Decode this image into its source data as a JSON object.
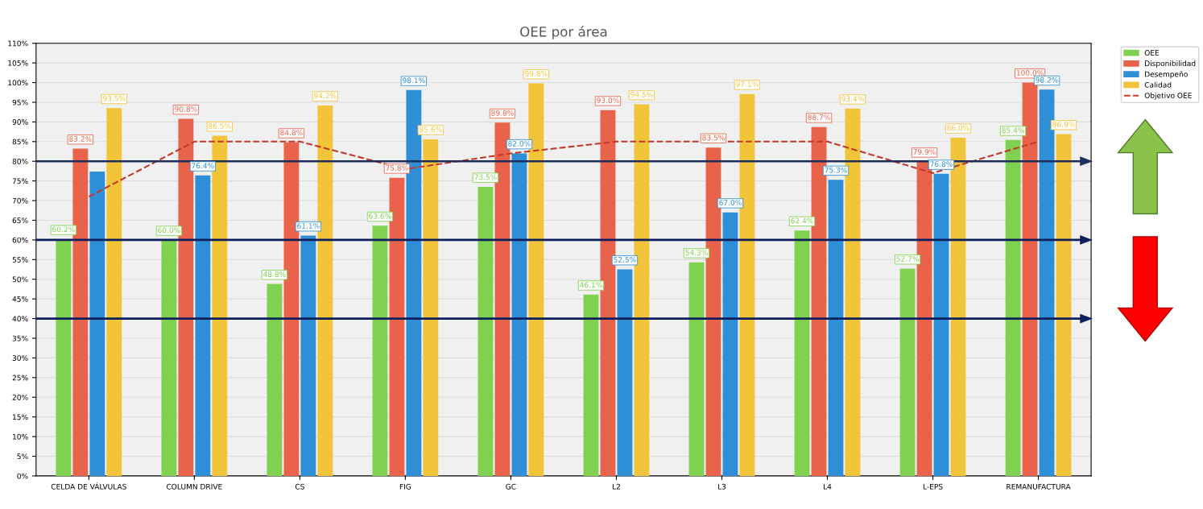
{
  "chart_data": {
    "type": "bar",
    "title": "OEE por área",
    "categories": [
      "CELDA DE VÁLVULAS",
      "COLUMN DRIVE",
      "CS",
      "FIG",
      "GC",
      "L2",
      "L3",
      "L4",
      "L-EPS",
      "REMANUFACTURA"
    ],
    "series": [
      {
        "name": "OEE",
        "color": "#7fd14f",
        "values": [
          60.2,
          60.0,
          48.8,
          63.6,
          73.5,
          46.1,
          54.3,
          62.4,
          52.7,
          85.4
        ],
        "value_labels": [
          "60.2%",
          "60.0%",
          "48.8%",
          "63.6%",
          "73.5%",
          "46.1%",
          "54.3%",
          "62.4%",
          "52.7%",
          "85.4%"
        ]
      },
      {
        "name": "Disponibilidad",
        "color": "#e8634a",
        "values": [
          83.2,
          90.8,
          84.8,
          75.8,
          89.8,
          93.0,
          83.5,
          88.7,
          79.9,
          100.0
        ],
        "value_labels": [
          "83.2%",
          "90.8%",
          "84.8%",
          "75.8%",
          "89.8%",
          "93.0%",
          "83.5%",
          "88.7%",
          "79.9%",
          "100.0%"
        ]
      },
      {
        "name": "Desempeño",
        "color": "#2f8fd6",
        "values": [
          77.4,
          76.4,
          61.1,
          98.1,
          82.0,
          52.5,
          67.0,
          75.3,
          76.8,
          98.2
        ],
        "value_labels": [
          null,
          "76.4%",
          "61.1%",
          "98.1%",
          "82.0%",
          "52.5%",
          "67.0%",
          "75.3%",
          "76.8%",
          "98.2%"
        ]
      },
      {
        "name": "Calidad",
        "color": "#f2c43a",
        "values": [
          93.5,
          86.5,
          94.2,
          85.6,
          99.8,
          94.5,
          97.1,
          93.4,
          86.0,
          86.9
        ],
        "value_labels": [
          "93.5%",
          "86.5%",
          "94.2%",
          "85.6%",
          "99.8%",
          "94.5%",
          "97.1%",
          "93.4%",
          "86.0%",
          "86.9%"
        ]
      },
      {
        "name": "Objetivo OEE",
        "type": "line",
        "color": "#c0392b",
        "line_style": "dashed",
        "marker": "none",
        "values": [
          71,
          85,
          85,
          78,
          82,
          85,
          85,
          85,
          77,
          85
        ]
      }
    ],
    "ylim": [
      0,
      110
    ],
    "yticks": [
      {
        "value": 0,
        "label": "0%"
      },
      {
        "value": 5,
        "label": "5%"
      },
      {
        "value": 10,
        "label": "10%"
      },
      {
        "value": 15,
        "label": "15%"
      },
      {
        "value": 20,
        "label": "20%"
      },
      {
        "value": 25,
        "label": "25%"
      },
      {
        "value": 30,
        "label": "30%"
      },
      {
        "value": 35,
        "label": "35%"
      },
      {
        "value": 40,
        "label": "40%"
      },
      {
        "value": 45,
        "label": "45%"
      },
      {
        "value": 50,
        "label": "50%"
      },
      {
        "value": 55,
        "label": "55%"
      },
      {
        "value": 60,
        "label": "60%"
      },
      {
        "value": 65,
        "label": "65%"
      },
      {
        "value": 70,
        "label": "70%"
      },
      {
        "value": 75,
        "label": "75%"
      },
      {
        "value": 80,
        "label": "80%"
      },
      {
        "value": 85,
        "label": "85%"
      },
      {
        "value": 90,
        "label": "90%"
      },
      {
        "value": 95,
        "label": "95%"
      },
      {
        "value": 100,
        "label": "100%"
      },
      {
        "value": 105,
        "label": "105%"
      },
      {
        "value": 110,
        "label": "110%"
      }
    ],
    "ref_lines": [
      {
        "axis": "y",
        "value": 80,
        "color": "#1f2d5a"
      },
      {
        "axis": "y",
        "value": 60,
        "color": "#0d1f5c"
      },
      {
        "axis": "y",
        "value": 40,
        "color": "#0d1f5c"
      }
    ],
    "grid": "y",
    "legend": "top right"
  }
}
